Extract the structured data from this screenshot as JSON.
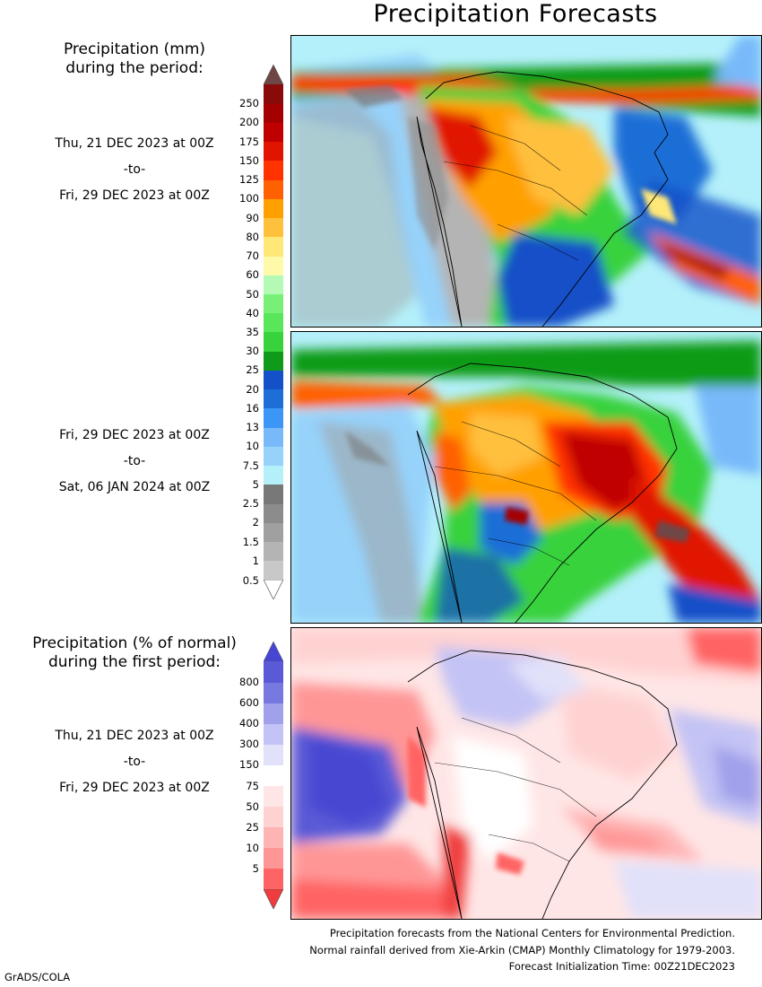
{
  "title": "Precipitation Forecasts",
  "amount_legend": {
    "heading_line1": "Precipitation (mm)",
    "heading_line2": "during the period:",
    "levels": [
      "0.5",
      "1",
      "1.5",
      "2",
      "2.5",
      "5",
      "7.5",
      "10",
      "13",
      "16",
      "20",
      "25",
      "30",
      "35",
      "40",
      "50",
      "60",
      "70",
      "80",
      "90",
      "100",
      "125",
      "150",
      "175",
      "200",
      "250"
    ],
    "colors": [
      "#c8c8c8",
      "#b4b4b4",
      "#a0a0a0",
      "#8c8c8c",
      "#787878",
      "#b4f0fa",
      "#96d2fa",
      "#78b9fa",
      "#3c96f5",
      "#1e6ed7",
      "#1450c8",
      "#0f9b19",
      "#37d23c",
      "#5ae65a",
      "#78f078",
      "#b4fab4",
      "#fffaaa",
      "#ffe878",
      "#ffc03c",
      "#ffa000",
      "#ff6000",
      "#ff3200",
      "#e11400",
      "#c00000",
      "#a50000",
      "#8a0a0a"
    ],
    "top_color": "#6e4646",
    "bottom_color": "#ffffff"
  },
  "percent_legend": {
    "heading_line1": "Precipitation (% of normal)",
    "heading_line2": "during the first period:",
    "levels": [
      "5",
      "10",
      "25",
      "50",
      "75",
      "150",
      "300",
      "400",
      "600",
      "800"
    ],
    "colors": [
      "#ff6464",
      "#ff9696",
      "#ffb4b4",
      "#ffd2d2",
      "#ffe6e6",
      "#ffffff",
      "#e1e1fa",
      "#c3c3f5",
      "#a0a0eb",
      "#7878e1",
      "#5a5ad7"
    ],
    "low_color": "#f03c3c",
    "high_color": "#4646d2"
  },
  "periods": [
    {
      "start": "Thu, 21 DEC 2023 at 00Z",
      "sep": "-to-",
      "end": "Fri, 29 DEC 2023 at 00Z"
    },
    {
      "start": "Fri, 29 DEC 2023 at 00Z",
      "sep": "-to-",
      "end": "Sat, 06 JAN 2024 at 00Z"
    },
    {
      "start": "Thu, 21 DEC 2023 at 00Z",
      "sep": "-to-",
      "end": "Fri, 29 DEC 2023 at 00Z"
    }
  ],
  "footer": {
    "line1": "Precipitation forecasts from the National Centers for Environmental Prediction.",
    "line2": "Normal rainfall derived from Xie-Arkin (CMAP) Monthly Climatology for 1979-2003.",
    "line3": "Forecast Initialization Time: 00Z21DEC2023"
  },
  "credit": "GrADS/COLA"
}
